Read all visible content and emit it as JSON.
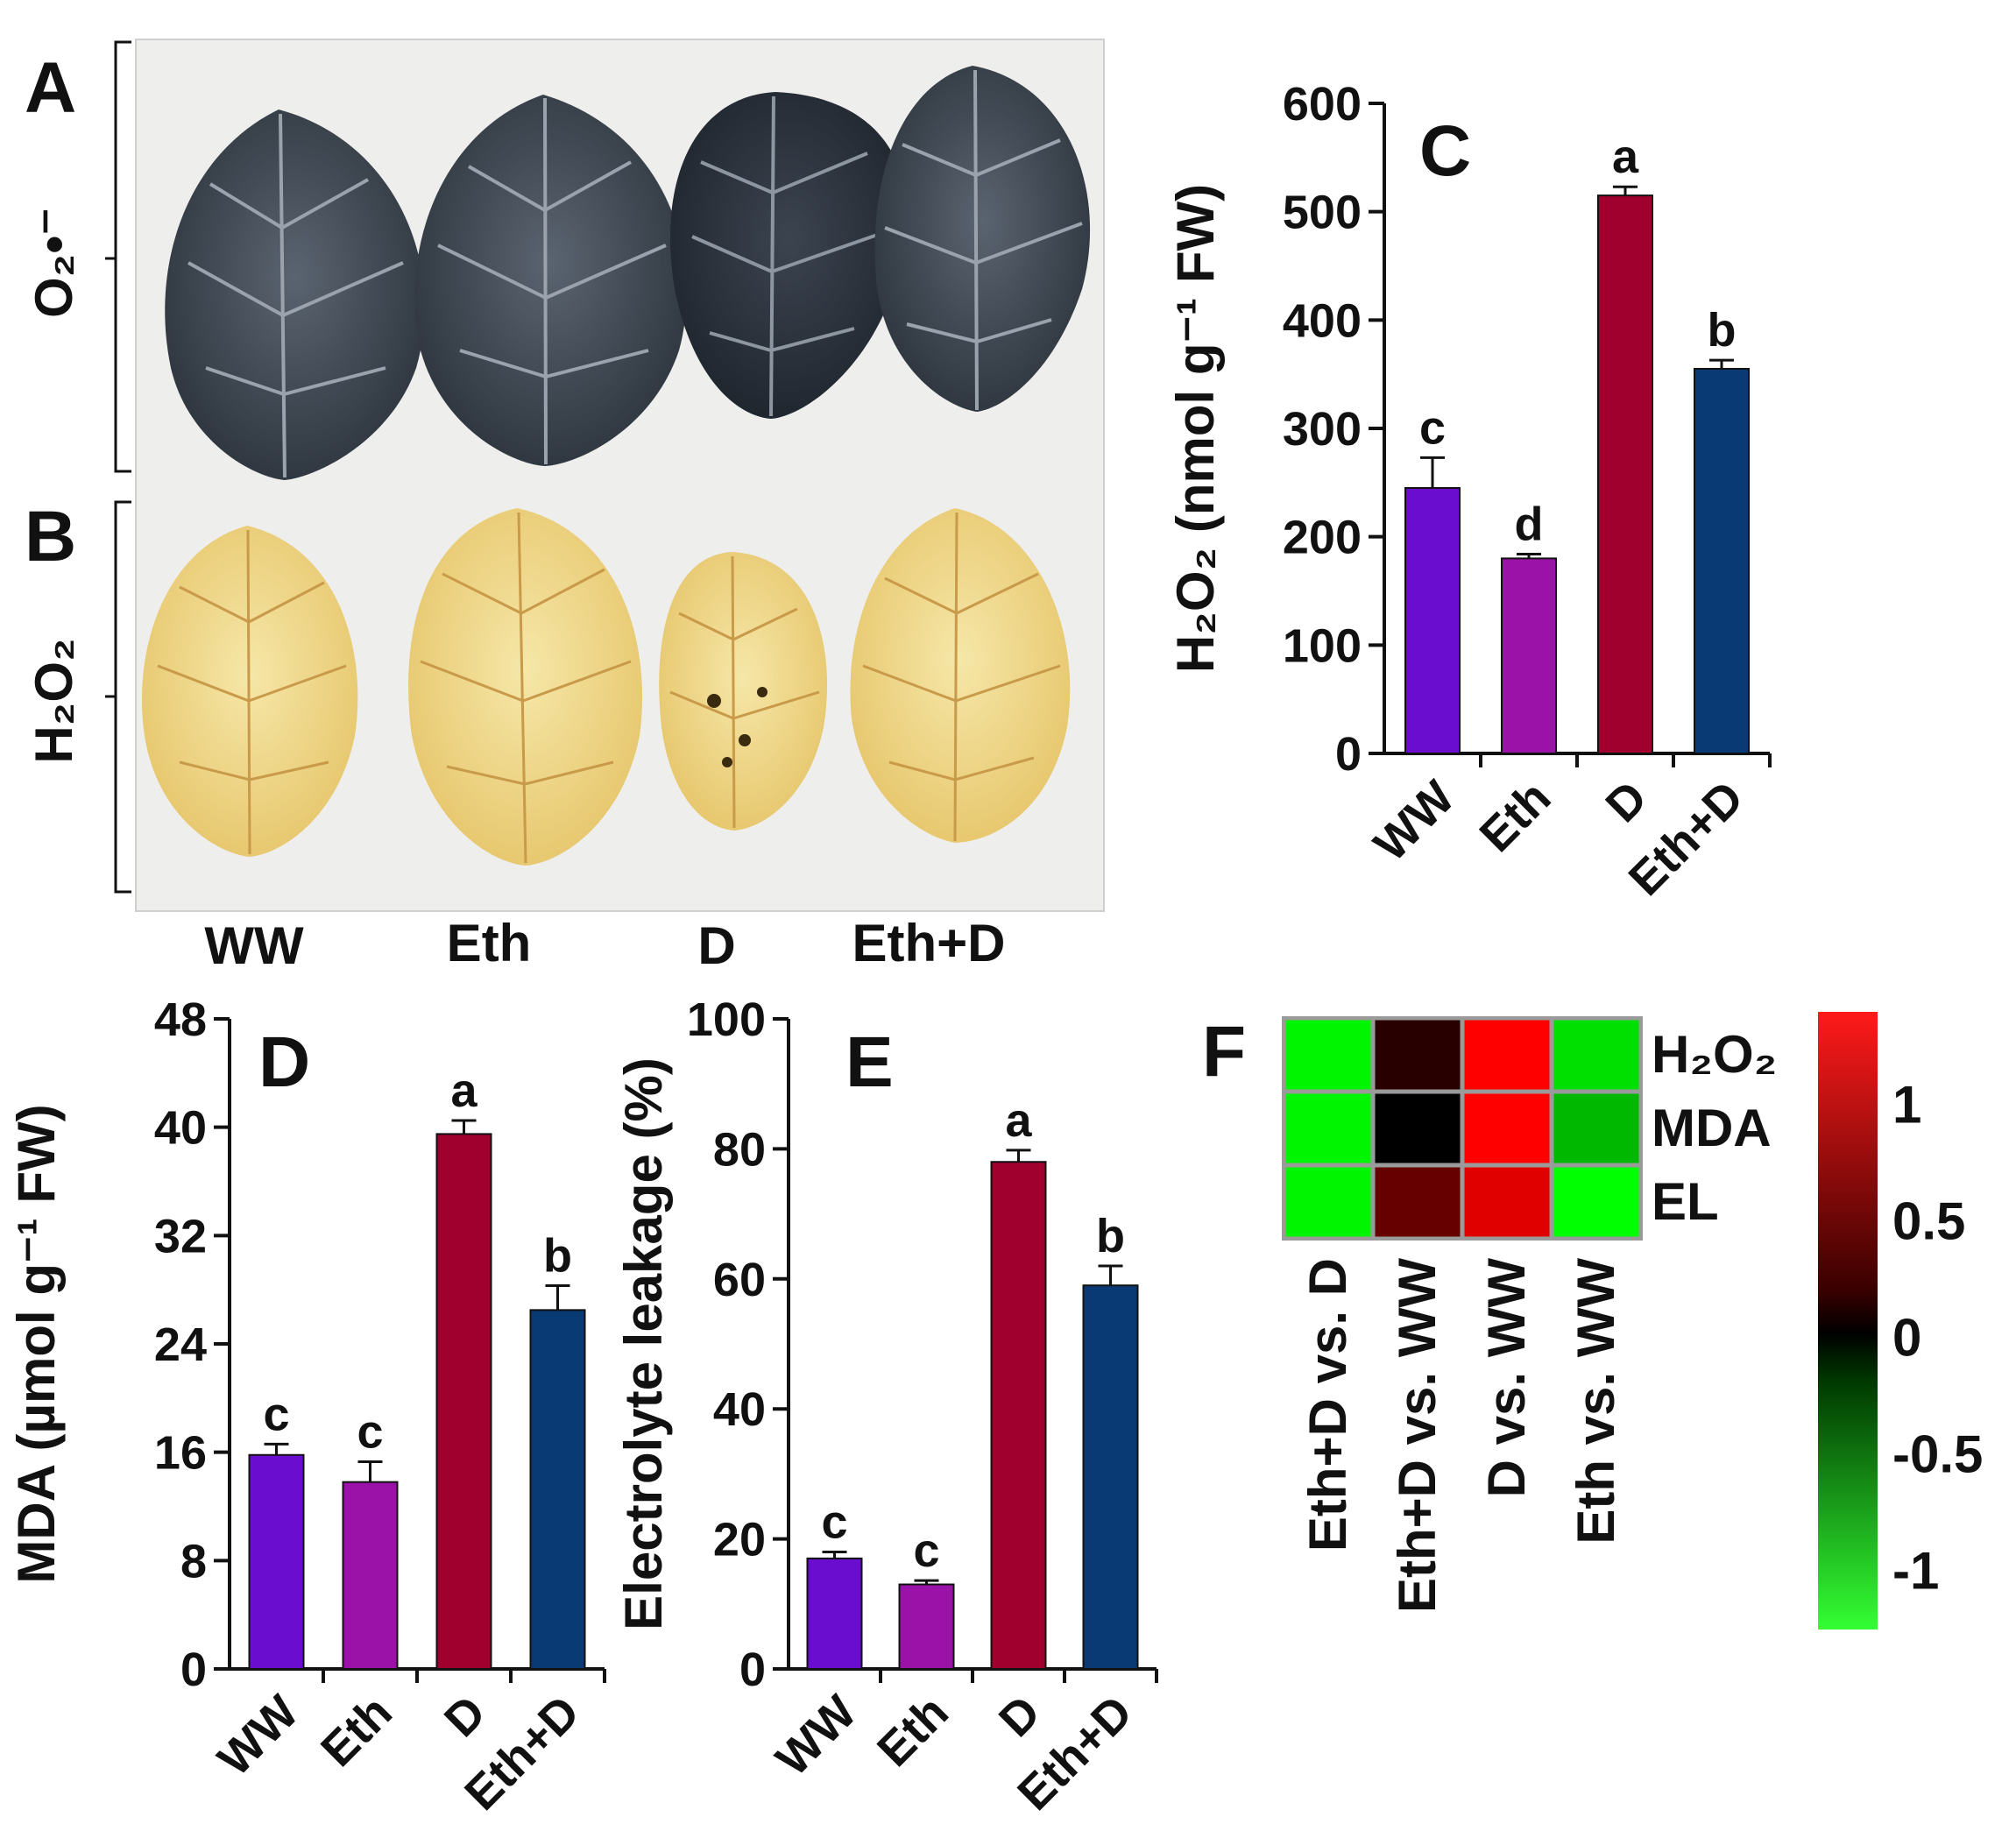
{
  "panels": {
    "A": {
      "label": "A",
      "ylabel": "O₂•⁻"
    },
    "B": {
      "label": "B",
      "ylabel": "H₂O₂"
    },
    "photo_x_labels": [
      "WW",
      "Eth",
      "D",
      "Eth+D"
    ]
  },
  "chart_data": [
    {
      "id": "C",
      "type": "bar",
      "panel_label": "C",
      "ylabel": "H₂O₂ (nmol g⁻¹ FW)",
      "categories": [
        "WW",
        "Eth",
        "D",
        "Eth+D"
      ],
      "values": [
        245,
        180,
        515,
        355
      ],
      "errors": [
        28,
        4,
        8,
        8
      ],
      "letters": [
        "c",
        "d",
        "a",
        "b"
      ],
      "colors": [
        "#6a0dcf",
        "#9b12a8",
        "#a0002e",
        "#0a3a73"
      ],
      "ylim": [
        0,
        600
      ],
      "yticks": [
        0,
        100,
        200,
        300,
        400,
        500,
        600
      ]
    },
    {
      "id": "D",
      "type": "bar",
      "panel_label": "D",
      "ylabel": "MDA (µmol g⁻¹ FW)",
      "categories": [
        "WW",
        "Eth",
        "D",
        "Eth+D"
      ],
      "values": [
        15.8,
        13.8,
        39.5,
        26.5
      ],
      "errors": [
        0.8,
        1.5,
        1.0,
        1.8
      ],
      "letters": [
        "c",
        "c",
        "a",
        "b"
      ],
      "colors": [
        "#6a0dcf",
        "#9b12a8",
        "#a0002e",
        "#0a3a73"
      ],
      "ylim": [
        0,
        48
      ],
      "yticks": [
        0,
        8,
        16,
        24,
        32,
        40,
        48
      ]
    },
    {
      "id": "E",
      "type": "bar",
      "panel_label": "E",
      "ylabel": "Electrolyte leakage (%)",
      "categories": [
        "WW",
        "Eth",
        "D",
        "Eth+D"
      ],
      "values": [
        17,
        13,
        78,
        59
      ],
      "errors": [
        1.0,
        0.6,
        1.8,
        3.0
      ],
      "letters": [
        "c",
        "c",
        "a",
        "b"
      ],
      "colors": [
        "#6a0dcf",
        "#9b12a8",
        "#a0002e",
        "#0a3a73"
      ],
      "ylim": [
        0,
        100
      ],
      "yticks": [
        0,
        20,
        40,
        60,
        80,
        100
      ]
    },
    {
      "id": "F",
      "type": "heatmap",
      "panel_label": "F",
      "rows": [
        "H₂O₂",
        "MDA",
        "EL"
      ],
      "columns": [
        "Eth+D vs. D",
        "Eth+D vs. WW",
        "D vs. WW",
        "Eth vs. WW"
      ],
      "values": [
        [
          -1.2,
          0.2,
          1.25,
          -1.1
        ],
        [
          -1.2,
          0.0,
          1.25,
          -0.9
        ],
        [
          -1.2,
          0.5,
          1.1,
          -1.25
        ]
      ],
      "colorbar": {
        "min": -1.25,
        "max": 1.4,
        "ticks": [
          1,
          0.5,
          0,
          -0.5,
          -1
        ]
      }
    }
  ]
}
